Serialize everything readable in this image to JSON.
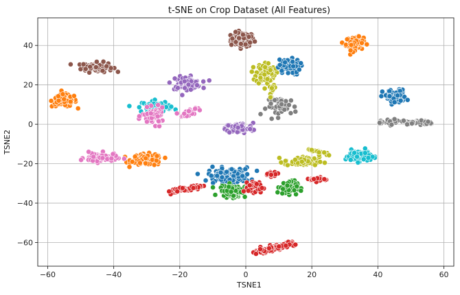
{
  "chart_data": {
    "type": "scatter",
    "title": "t-SNE on Crop Dataset (All Features)",
    "xlabel": "TSNE1",
    "ylabel": "TSNE2",
    "xlim": [
      -63,
      63
    ],
    "ylim": [
      -72,
      54
    ],
    "xticks": [
      -60,
      -40,
      -20,
      0,
      20,
      40,
      60
    ],
    "yticks": [
      -60,
      -40,
      -20,
      0,
      20,
      40
    ],
    "grid": true,
    "legend": "none",
    "clusters": [
      {
        "color": "#8c564b",
        "shape": "blob",
        "center": [
          -1,
          43
        ],
        "spread": [
          3.2,
          3.2
        ],
        "count": 110
      },
      {
        "color": "#8c564b",
        "shape": "blob",
        "center": [
          -45,
          29
        ],
        "spread": [
          4.2,
          2.2
        ],
        "count": 100
      },
      {
        "color": "#ff7f0e",
        "shape": "blob",
        "center": [
          33,
          41
        ],
        "spread": [
          2.4,
          3.0
        ],
        "count": 80
      },
      {
        "color": "#ff7f0e",
        "shape": "blob",
        "center": [
          -55,
          12
        ],
        "spread": [
          3.4,
          2.8
        ],
        "count": 100
      },
      {
        "color": "#ff7f0e",
        "shape": "blob",
        "center": [
          -30,
          -18
        ],
        "spread": [
          4.2,
          2.6
        ],
        "count": 100
      },
      {
        "color": "#9467bd",
        "shape": "blob",
        "center": [
          -18,
          21
        ],
        "spread": [
          4.0,
          2.8
        ],
        "count": 80
      },
      {
        "color": "#9467bd",
        "shape": "blob",
        "center": [
          -2,
          -2
        ],
        "spread": [
          3.8,
          2.4
        ],
        "count": 80
      },
      {
        "color": "#bcbd22",
        "shape": "blob",
        "center": [
          6,
          26
        ],
        "spread": [
          2.6,
          5.0
        ],
        "count": 90
      },
      {
        "color": "#1f77b4",
        "shape": "blob",
        "center": [
          13,
          29
        ],
        "spread": [
          3.0,
          3.6
        ],
        "count": 80
      },
      {
        "color": "#1f77b4",
        "shape": "blob",
        "center": [
          45,
          14
        ],
        "spread": [
          3.2,
          3.2
        ],
        "count": 80
      },
      {
        "color": "#1f77b4",
        "shape": "blob",
        "center": [
          -5,
          -26
        ],
        "spread": [
          5.8,
          3.6
        ],
        "count": 120
      },
      {
        "color": "#7f7f7f",
        "shape": "blob",
        "center": [
          11,
          9
        ],
        "spread": [
          4.2,
          4.0
        ],
        "count": 50
      },
      {
        "color": "#17becf",
        "shape": "blob",
        "center": [
          -27,
          9
        ],
        "spread": [
          4.0,
          2.6
        ],
        "count": 80
      },
      {
        "color": "#17becf",
        "shape": "blob",
        "center": [
          34,
          -16
        ],
        "spread": [
          3.4,
          2.6
        ],
        "count": 90
      },
      {
        "color": "#e377c2",
        "shape": "blob",
        "center": [
          -28,
          4
        ],
        "spread": [
          3.0,
          3.6
        ],
        "count": 60
      },
      {
        "color": "#e377c2",
        "shape": "blob",
        "center": [
          -44,
          -17
        ],
        "spread": [
          4.4,
          2.2
        ],
        "count": 80
      },
      {
        "color": "#2ca02c",
        "shape": "blob",
        "center": [
          -4,
          -34
        ],
        "spread": [
          3.6,
          2.8
        ],
        "count": 90
      },
      {
        "color": "#2ca02c",
        "shape": "blob",
        "center": [
          13,
          -32
        ],
        "spread": [
          2.4,
          3.0
        ],
        "count": 70
      },
      {
        "color": "#bcbd22",
        "shape": "blob",
        "center": [
          17,
          -19
        ],
        "spread": [
          4.8,
          2.2
        ],
        "count": 70
      },
      {
        "color": "#d62728",
        "shape": "blob",
        "center": [
          3,
          -32
        ],
        "spread": [
          2.0,
          2.4
        ],
        "count": 40
      },
      {
        "color": "#d62728",
        "shape": "blob",
        "center": [
          8,
          -25
        ],
        "spread": [
          1.8,
          1.2
        ],
        "count": 20
      },
      {
        "color": "#d62728",
        "shape": "blob",
        "center": [
          22,
          -28
        ],
        "spread": [
          2.2,
          1.0
        ],
        "count": 25
      },
      {
        "color": "#d62728",
        "shape": "line",
        "from": [
          -23,
          -34
        ],
        "to": [
          -13,
          -31
        ],
        "width": 1.2,
        "count": 50
      },
      {
        "color": "#d62728",
        "shape": "line",
        "from": [
          3,
          -65
        ],
        "to": [
          15,
          -60
        ],
        "width": 1.2,
        "count": 90
      },
      {
        "color": "#7f7f7f",
        "shape": "line",
        "from": [
          40,
          1
        ],
        "to": [
          56,
          1
        ],
        "width": 1.0,
        "count": 70
      },
      {
        "color": "#bcbd22",
        "shape": "line",
        "from": [
          19,
          -13
        ],
        "to": [
          25,
          -15
        ],
        "width": 0.8,
        "count": 20
      },
      {
        "color": "#e377c2",
        "shape": "line",
        "from": [
          -20,
          4
        ],
        "to": [
          -14,
          8
        ],
        "width": 1.4,
        "count": 25
      },
      {
        "color": "#bcbd22",
        "shape": "line",
        "from": [
          8,
          20
        ],
        "to": [
          8,
          14
        ],
        "width": 1.0,
        "count": 15
      }
    ]
  }
}
